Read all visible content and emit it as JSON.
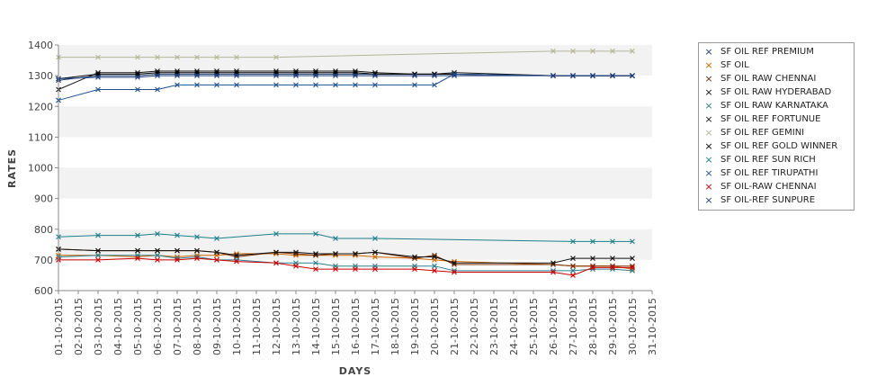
{
  "chart_data": {
    "type": "line",
    "title": "",
    "xlabel": "DAYS",
    "ylabel": "RATES",
    "ylim": [
      600,
      1400
    ],
    "yticks": [
      600,
      700,
      800,
      900,
      1000,
      1100,
      1200,
      1300,
      1400
    ],
    "grid": "alternating horizontal bands",
    "legend_position": "right",
    "x_ticks": [
      "01-10-2015",
      "02-10-2015",
      "03-10-2015",
      "04-10-2015",
      "05-10-2015",
      "06-10-2015",
      "07-10-2015",
      "08-10-2015",
      "09-10-2015",
      "10-10-2015",
      "11-10-2015",
      "12-10-2015",
      "13-10-2015",
      "14-10-2015",
      "15-10-2015",
      "16-10-2015",
      "17-10-2015",
      "18-10-2015",
      "19-10-2015",
      "20-10-2015",
      "21-10-2015",
      "22-10-2015",
      "23-10-2015",
      "24-10-2015",
      "25-10-2015",
      "26-10-2015",
      "27-10-2015",
      "28-10-2015",
      "29-10-2015",
      "30-10-2015",
      "31-10-2015"
    ],
    "series": [
      {
        "name": " SF OIL REF PREMIUM",
        "color": "#1f3f6f",
        "points": [
          [
            "01-10-2015",
            1285
          ],
          [
            "03-10-2015",
            1300
          ],
          [
            "05-10-2015",
            1300
          ],
          [
            "06-10-2015",
            1305
          ],
          [
            "07-10-2015",
            1305
          ],
          [
            "08-10-2015",
            1305
          ],
          [
            "09-10-2015",
            1305
          ],
          [
            "10-10-2015",
            1305
          ],
          [
            "12-10-2015",
            1305
          ],
          [
            "13-10-2015",
            1305
          ],
          [
            "14-10-2015",
            1305
          ],
          [
            "15-10-2015",
            1305
          ],
          [
            "16-10-2015",
            1305
          ],
          [
            "17-10-2015",
            1305
          ],
          [
            "19-10-2015",
            1305
          ],
          [
            "20-10-2015",
            1305
          ],
          [
            "21-10-2015",
            1305
          ],
          [
            "26-10-2015",
            1300
          ],
          [
            "27-10-2015",
            1300
          ],
          [
            "28-10-2015",
            1300
          ],
          [
            "29-10-2015",
            1300
          ],
          [
            "30-10-2015",
            1300
          ]
        ]
      },
      {
        "name": "SF OIL",
        "color": "#cc6600",
        "points": [
          [
            "01-10-2015",
            715
          ],
          [
            "03-10-2015",
            715
          ],
          [
            "05-10-2015",
            710
          ],
          [
            "06-10-2015",
            715
          ],
          [
            "07-10-2015",
            710
          ],
          [
            "08-10-2015",
            715
          ],
          [
            "09-10-2015",
            715
          ],
          [
            "10-10-2015",
            720
          ],
          [
            "12-10-2015",
            720
          ],
          [
            "13-10-2015",
            715
          ],
          [
            "14-10-2015",
            715
          ],
          [
            "15-10-2015",
            715
          ],
          [
            "16-10-2015",
            715
          ],
          [
            "17-10-2015",
            710
          ],
          [
            "19-10-2015",
            705
          ],
          [
            "20-10-2015",
            700
          ],
          [
            "21-10-2015",
            695
          ],
          [
            "26-10-2015",
            685
          ],
          [
            "27-10-2015",
            680
          ],
          [
            "28-10-2015",
            680
          ],
          [
            "29-10-2015",
            680
          ],
          [
            "30-10-2015",
            670
          ]
        ]
      },
      {
        "name": "SF OIL RAW CHENNAI",
        "color": "#7a2b00",
        "points": [
          [
            "01-10-2015",
            735
          ],
          [
            "03-10-2015",
            730
          ],
          [
            "05-10-2015",
            730
          ],
          [
            "06-10-2015",
            730
          ],
          [
            "07-10-2015",
            730
          ],
          [
            "08-10-2015",
            730
          ],
          [
            "09-10-2015",
            725
          ],
          [
            "10-10-2015",
            710
          ],
          [
            "12-10-2015",
            725
          ],
          [
            "13-10-2015",
            720
          ],
          [
            "14-10-2015",
            715
          ],
          [
            "15-10-2015",
            720
          ],
          [
            "16-10-2015",
            720
          ],
          [
            "17-10-2015",
            725
          ],
          [
            "19-10-2015",
            705
          ],
          [
            "20-10-2015",
            715
          ],
          [
            "21-10-2015",
            685
          ],
          [
            "26-10-2015",
            685
          ],
          [
            "27-10-2015",
            680
          ],
          [
            "28-10-2015",
            680
          ],
          [
            "29-10-2015",
            680
          ],
          [
            "30-10-2015",
            680
          ]
        ]
      },
      {
        "name": "SF OIL RAW HYDERABAD",
        "color": "#111111",
        "points": [
          [
            "01-10-2015",
            735
          ],
          [
            "03-10-2015",
            730
          ],
          [
            "05-10-2015",
            730
          ],
          [
            "06-10-2015",
            730
          ],
          [
            "07-10-2015",
            730
          ],
          [
            "08-10-2015",
            730
          ],
          [
            "09-10-2015",
            725
          ],
          [
            "10-10-2015",
            715
          ],
          [
            "12-10-2015",
            725
          ],
          [
            "13-10-2015",
            725
          ],
          [
            "14-10-2015",
            720
          ],
          [
            "15-10-2015",
            720
          ],
          [
            "16-10-2015",
            720
          ],
          [
            "17-10-2015",
            725
          ],
          [
            "19-10-2015",
            710
          ],
          [
            "20-10-2015",
            710
          ],
          [
            "21-10-2015",
            690
          ],
          [
            "26-10-2015",
            690
          ],
          [
            "27-10-2015",
            705
          ],
          [
            "28-10-2015",
            705
          ],
          [
            "29-10-2015",
            705
          ],
          [
            "30-10-2015",
            705
          ]
        ]
      },
      {
        "name": "SF OIL RAW KARNATAKA",
        "color": "#2e7f8f",
        "points": [
          [
            "01-10-2015",
            710
          ],
          [
            "03-10-2015",
            715
          ],
          [
            "05-10-2015",
            715
          ],
          [
            "06-10-2015",
            715
          ],
          [
            "07-10-2015",
            705
          ],
          [
            "08-10-2015",
            710
          ],
          [
            "09-10-2015",
            700
          ],
          [
            "10-10-2015",
            700
          ],
          [
            "12-10-2015",
            690
          ],
          [
            "13-10-2015",
            690
          ],
          [
            "14-10-2015",
            690
          ],
          [
            "15-10-2015",
            680
          ],
          [
            "16-10-2015",
            680
          ],
          [
            "17-10-2015",
            680
          ],
          [
            "19-10-2015",
            680
          ],
          [
            "20-10-2015",
            680
          ],
          [
            "21-10-2015",
            665
          ],
          [
            "26-10-2015",
            665
          ],
          [
            "27-10-2015",
            665
          ],
          [
            "28-10-2015",
            670
          ],
          [
            "29-10-2015",
            670
          ],
          [
            "30-10-2015",
            665
          ]
        ]
      },
      {
        "name": "SF OIL REF FORTUNUE",
        "color": "#1a1a1a",
        "points": [
          [
            "01-10-2015",
            1255
          ],
          [
            "03-10-2015",
            1310
          ],
          [
            "05-10-2015",
            1310
          ],
          [
            "06-10-2015",
            1315
          ],
          [
            "07-10-2015",
            1315
          ],
          [
            "08-10-2015",
            1315
          ],
          [
            "09-10-2015",
            1315
          ],
          [
            "10-10-2015",
            1315
          ],
          [
            "12-10-2015",
            1315
          ],
          [
            "13-10-2015",
            1315
          ],
          [
            "14-10-2015",
            1315
          ],
          [
            "15-10-2015",
            1315
          ],
          [
            "16-10-2015",
            1315
          ],
          [
            "17-10-2015",
            1310
          ],
          [
            "19-10-2015",
            1305
          ],
          [
            "20-10-2015",
            1305
          ],
          [
            "21-10-2015",
            1310
          ],
          [
            "26-10-2015",
            1300
          ],
          [
            "27-10-2015",
            1300
          ],
          [
            "28-10-2015",
            1300
          ],
          [
            "29-10-2015",
            1300
          ],
          [
            "30-10-2015",
            1300
          ]
        ]
      },
      {
        "name": "SF OIL REF GEMINI",
        "color": "#b5b59a",
        "points": [
          [
            "01-10-2015",
            1360
          ],
          [
            "03-10-2015",
            1360
          ],
          [
            "05-10-2015",
            1360
          ],
          [
            "06-10-2015",
            1360
          ],
          [
            "07-10-2015",
            1360
          ],
          [
            "08-10-2015",
            1360
          ],
          [
            "09-10-2015",
            1360
          ],
          [
            "10-10-2015",
            1360
          ],
          [
            "12-10-2015",
            1360
          ],
          [
            "26-10-2015",
            1380
          ],
          [
            "27-10-2015",
            1380
          ],
          [
            "28-10-2015",
            1380
          ],
          [
            "29-10-2015",
            1380
          ],
          [
            "30-10-2015",
            1380
          ]
        ]
      },
      {
        "name": "SF OIL REF GOLD WINNER",
        "color": "#000000",
        "points": [
          [
            "01-10-2015",
            1290
          ],
          [
            "03-10-2015",
            1305
          ],
          [
            "05-10-2015",
            1305
          ],
          [
            "06-10-2015",
            1310
          ],
          [
            "07-10-2015",
            1310
          ],
          [
            "08-10-2015",
            1310
          ],
          [
            "09-10-2015",
            1310
          ],
          [
            "10-10-2015",
            1310
          ],
          [
            "12-10-2015",
            1310
          ],
          [
            "13-10-2015",
            1310
          ],
          [
            "14-10-2015",
            1310
          ],
          [
            "15-10-2015",
            1310
          ],
          [
            "16-10-2015",
            1310
          ],
          [
            "17-10-2015",
            1305
          ],
          [
            "19-10-2015",
            1305
          ],
          [
            "20-10-2015",
            1305
          ],
          [
            "21-10-2015",
            1305
          ],
          [
            "26-10-2015",
            1300
          ],
          [
            "27-10-2015",
            1300
          ],
          [
            "28-10-2015",
            1300
          ],
          [
            "29-10-2015",
            1300
          ],
          [
            "30-10-2015",
            1300
          ]
        ]
      },
      {
        "name": "SF OIL REF SUN RICH",
        "color": "#1b7f8a",
        "points": [
          [
            "01-10-2015",
            775
          ],
          [
            "03-10-2015",
            780
          ],
          [
            "05-10-2015",
            780
          ],
          [
            "06-10-2015",
            785
          ],
          [
            "07-10-2015",
            780
          ],
          [
            "08-10-2015",
            775
          ],
          [
            "09-10-2015",
            770
          ],
          [
            "12-10-2015",
            785
          ],
          [
            "14-10-2015",
            785
          ],
          [
            "15-10-2015",
            770
          ],
          [
            "17-10-2015",
            770
          ],
          [
            "27-10-2015",
            760
          ],
          [
            "28-10-2015",
            760
          ],
          [
            "29-10-2015",
            760
          ],
          [
            "30-10-2015",
            760
          ]
        ]
      },
      {
        "name": "SF OIL REF TIRUPATHI",
        "color": "#1f4f8f",
        "points": [
          [
            "01-10-2015",
            1220
          ],
          [
            "03-10-2015",
            1255
          ],
          [
            "05-10-2015",
            1255
          ],
          [
            "06-10-2015",
            1255
          ],
          [
            "07-10-2015",
            1270
          ],
          [
            "08-10-2015",
            1270
          ],
          [
            "09-10-2015",
            1270
          ],
          [
            "10-10-2015",
            1270
          ],
          [
            "12-10-2015",
            1270
          ],
          [
            "13-10-2015",
            1270
          ],
          [
            "14-10-2015",
            1270
          ],
          [
            "15-10-2015",
            1270
          ],
          [
            "16-10-2015",
            1270
          ],
          [
            "17-10-2015",
            1270
          ],
          [
            "19-10-2015",
            1270
          ],
          [
            "20-10-2015",
            1270
          ],
          [
            "21-10-2015",
            1305
          ],
          [
            "26-10-2015",
            1300
          ],
          [
            "27-10-2015",
            1300
          ],
          [
            "28-10-2015",
            1300
          ],
          [
            "29-10-2015",
            1300
          ],
          [
            "30-10-2015",
            1300
          ]
        ]
      },
      {
        "name": "SF OIL-RAW CHENNAI",
        "color": "#cc0000",
        "points": [
          [
            "01-10-2015",
            700
          ],
          [
            "03-10-2015",
            700
          ],
          [
            "05-10-2015",
            705
          ],
          [
            "06-10-2015",
            700
          ],
          [
            "07-10-2015",
            700
          ],
          [
            "08-10-2015",
            705
          ],
          [
            "09-10-2015",
            700
          ],
          [
            "10-10-2015",
            695
          ],
          [
            "12-10-2015",
            690
          ],
          [
            "13-10-2015",
            680
          ],
          [
            "14-10-2015",
            670
          ],
          [
            "15-10-2015",
            670
          ],
          [
            "16-10-2015",
            670
          ],
          [
            "17-10-2015",
            670
          ],
          [
            "19-10-2015",
            670
          ],
          [
            "20-10-2015",
            665
          ],
          [
            "21-10-2015",
            660
          ],
          [
            "26-10-2015",
            660
          ],
          [
            "27-10-2015",
            650
          ],
          [
            "28-10-2015",
            675
          ],
          [
            "29-10-2015",
            675
          ],
          [
            "30-10-2015",
            675
          ]
        ]
      },
      {
        "name": "SF OIL-REF SUNPURE",
        "color": "#1f3f7f",
        "points": [
          [
            "01-10-2015",
            1290
          ],
          [
            "03-10-2015",
            1295
          ],
          [
            "05-10-2015",
            1295
          ],
          [
            "06-10-2015",
            1300
          ],
          [
            "07-10-2015",
            1300
          ],
          [
            "08-10-2015",
            1300
          ],
          [
            "09-10-2015",
            1300
          ],
          [
            "10-10-2015",
            1300
          ],
          [
            "12-10-2015",
            1300
          ],
          [
            "13-10-2015",
            1300
          ],
          [
            "14-10-2015",
            1300
          ],
          [
            "15-10-2015",
            1300
          ],
          [
            "16-10-2015",
            1300
          ],
          [
            "17-10-2015",
            1300
          ],
          [
            "19-10-2015",
            1300
          ],
          [
            "20-10-2015",
            1300
          ],
          [
            "21-10-2015",
            1300
          ],
          [
            "26-10-2015",
            1300
          ],
          [
            "27-10-2015",
            1300
          ],
          [
            "28-10-2015",
            1300
          ],
          [
            "29-10-2015",
            1300
          ],
          [
            "30-10-2015",
            1300
          ]
        ]
      }
    ]
  }
}
